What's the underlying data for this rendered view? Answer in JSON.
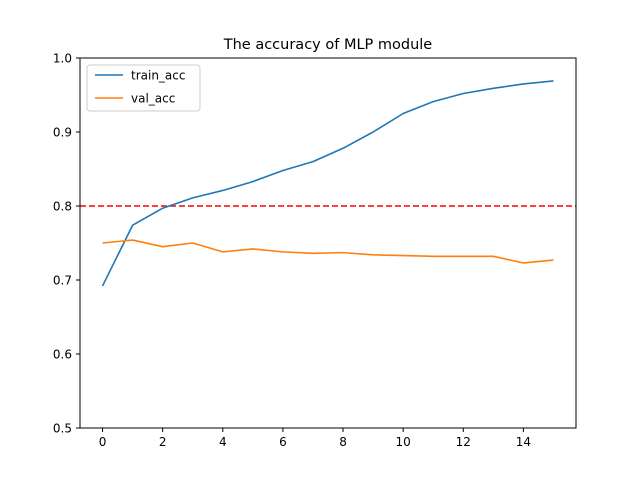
{
  "chart_data": {
    "type": "line",
    "title": "The accuracy of MLP module",
    "xlabel": "",
    "ylabel": "",
    "x": [
      0,
      1,
      2,
      3,
      4,
      5,
      6,
      7,
      8,
      9,
      10,
      11,
      12,
      13,
      14,
      15
    ],
    "xlim": [
      -0.75,
      15.75
    ],
    "ylim": [
      0.5,
      1.0
    ],
    "xticks": [
      0,
      2,
      4,
      6,
      8,
      10,
      12,
      14
    ],
    "yticks": [
      0.5,
      0.6,
      0.7,
      0.8,
      0.9,
      1.0
    ],
    "xtick_labels": [
      "0",
      "2",
      "4",
      "6",
      "8",
      "10",
      "12",
      "14"
    ],
    "ytick_labels": [
      "0.5",
      "0.6",
      "0.7",
      "0.8",
      "0.9",
      "1.0"
    ],
    "grid": false,
    "legend_position": "top-left",
    "series": [
      {
        "name": "train_acc",
        "color": "#1f77b4",
        "values": [
          0.692,
          0.774,
          0.797,
          0.811,
          0.821,
          0.833,
          0.848,
          0.86,
          0.878,
          0.9,
          0.925,
          0.941,
          0.952,
          0.959,
          0.965,
          0.969
        ]
      },
      {
        "name": "val_acc",
        "color": "#ff7f0e",
        "values": [
          0.75,
          0.754,
          0.745,
          0.75,
          0.738,
          0.742,
          0.738,
          0.736,
          0.737,
          0.734,
          0.733,
          0.732,
          0.732,
          0.732,
          0.723,
          0.727
        ]
      }
    ],
    "reference_line": {
      "y": 0.8,
      "color": "#ff0000",
      "style": "dashed"
    }
  }
}
